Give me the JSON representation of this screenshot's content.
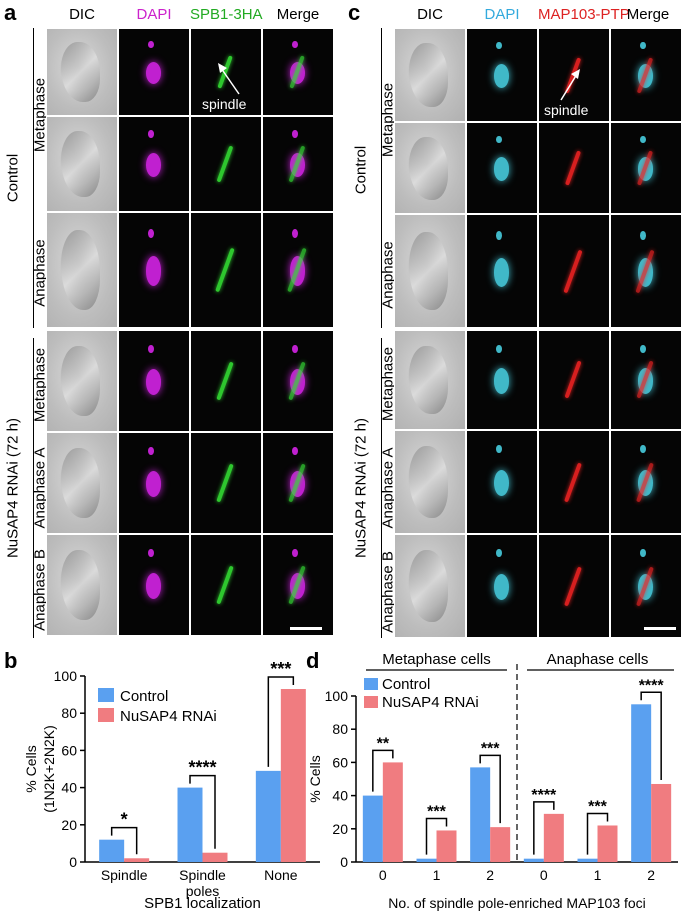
{
  "panels": {
    "a": {
      "letter": "a",
      "columns": [
        "DIC",
        "DAPI",
        "SPB1-3HA",
        "Merge"
      ],
      "column_colors": [
        "#000000",
        "#cc22cc",
        "#22aa22",
        "#000000"
      ],
      "group_labels": [
        "Control",
        "NuSAP4 RNAi (72 h)"
      ],
      "row_labels": [
        "Metaphase",
        "Anaphase",
        "Metaphase",
        "Anaphase A",
        "Anaphase B"
      ],
      "annotation": "spindle"
    },
    "c": {
      "letter": "c",
      "columns": [
        "DIC",
        "DAPI",
        "MAP103-PTP",
        "Merge"
      ],
      "column_colors": [
        "#000000",
        "#33aadd",
        "#dd2222",
        "#000000"
      ],
      "group_labels": [
        "Control",
        "NuSAP4 RNAi (72 h)"
      ],
      "row_labels": [
        "Metaphase",
        "Anaphase",
        "Metaphase",
        "Anaphase A",
        "Anaphase B"
      ],
      "annotation": "spindle"
    },
    "b": {
      "letter": "b",
      "legend": [
        "Control",
        "NuSAP4 RNAi"
      ],
      "colors": {
        "control": "#5aa0f0",
        "rnai": "#f07c80"
      }
    },
    "d": {
      "letter": "d",
      "legend": [
        "Control",
        "NuSAP4 RNAi"
      ],
      "group_headers": [
        "Metaphase cells",
        "Anaphase cells"
      ],
      "colors": {
        "control": "#5aa0f0",
        "rnai": "#f07c80"
      }
    }
  },
  "chart_data": [
    {
      "type": "bar",
      "panel": "b",
      "categories": [
        "Spindle",
        "Spindle poles",
        "None"
      ],
      "series": [
        {
          "name": "Control",
          "values": [
            12,
            40,
            49
          ]
        },
        {
          "name": "NuSAP4 RNAi",
          "values": [
            2,
            5,
            93
          ]
        }
      ],
      "significance": [
        "*",
        "****",
        "***"
      ],
      "ylabel": "% Cells (1N2K+2N2K)",
      "xlabel": "SPB1 localization",
      "ylim": [
        0,
        100
      ],
      "yticks": [
        0,
        20,
        40,
        60,
        80,
        100
      ]
    },
    {
      "type": "bar",
      "panel": "d",
      "categories": [
        "0",
        "1",
        "2",
        "0",
        "1",
        "2"
      ],
      "series": [
        {
          "name": "Control",
          "values": [
            40,
            2,
            57,
            2,
            2,
            95
          ]
        },
        {
          "name": "NuSAP4 RNAi",
          "values": [
            60,
            19,
            21,
            29,
            22,
            47
          ]
        }
      ],
      "significance": [
        "**",
        "***",
        "***",
        "****",
        "***",
        "****"
      ],
      "ylabel": "% Cells",
      "xlabel": "No. of spindle pole-enriched MAP103 foci",
      "ylim": [
        0,
        100
      ],
      "yticks": [
        0,
        20,
        40,
        60,
        80,
        100
      ]
    }
  ]
}
